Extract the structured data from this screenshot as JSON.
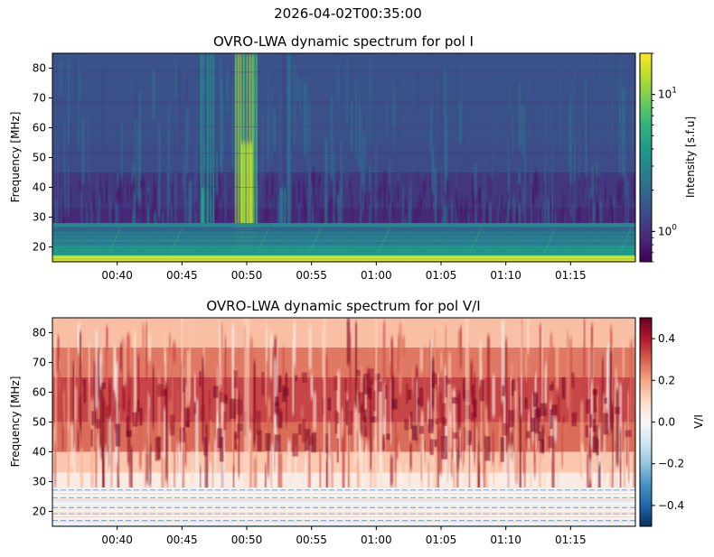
{
  "suptitle": "2026-04-02T00:35:00",
  "colors": {
    "viridis": [
      "#440154",
      "#482878",
      "#3e4989",
      "#31688e",
      "#26828e",
      "#1f9e89",
      "#35b779",
      "#6ece58",
      "#b5de2b",
      "#fde725"
    ],
    "rdbu_r": [
      "#053061",
      "#2166ac",
      "#4393c3",
      "#92c5de",
      "#d1e5f0",
      "#f7f7f7",
      "#fddbc7",
      "#f4a582",
      "#d6604d",
      "#b2182b",
      "#67001f"
    ]
  },
  "chart_data": [
    {
      "type": "heatmap",
      "title": "OVRO-LWA dynamic spectrum for pol I",
      "xlabel": "",
      "ylabel": "Frequency [MHz]",
      "xlim": [
        "00:35:00",
        "01:20:00"
      ],
      "ylim": [
        15,
        85
      ],
      "x_ticks": [
        "00:40",
        "00:45",
        "00:50",
        "00:55",
        "01:00",
        "01:05",
        "01:10",
        "01:15"
      ],
      "y_ticks": [
        20,
        30,
        40,
        50,
        60,
        70,
        80
      ],
      "colormap": "viridis",
      "color_scale": "log",
      "colorbar": {
        "label": "Intensity [s.f.u]",
        "range": [
          0.6,
          20
        ],
        "tick_labels": [
          "10^0",
          "10^1"
        ],
        "tick_values": [
          1,
          10
        ]
      },
      "features": [
        {
          "time": "00:47",
          "freq_range": [
            25,
            85
          ],
          "peak_intensity": 5
        },
        {
          "time": "00:50",
          "freq_range": [
            20,
            85
          ],
          "peak_intensity": 15
        },
        {
          "time": "00:53",
          "freq_range": [
            25,
            85
          ],
          "peak_intensity": 3
        }
      ],
      "rfi_band_mhz": [
        15,
        28
      ]
    },
    {
      "type": "heatmap",
      "title": "OVRO-LWA dynamic spectrum for pol V/I",
      "xlabel": "",
      "ylabel": "Frequency [MHz]",
      "xlim": [
        "00:35:00",
        "01:20:00"
      ],
      "ylim": [
        15,
        85
      ],
      "x_ticks": [
        "00:40",
        "00:45",
        "00:50",
        "00:55",
        "01:00",
        "01:05",
        "01:10",
        "01:15"
      ],
      "y_ticks": [
        20,
        30,
        40,
        50,
        60,
        70,
        80
      ],
      "colormap": "RdBu_r",
      "color_scale": "linear",
      "colorbar": {
        "label": "V/I",
        "range": [
          -0.5,
          0.5
        ],
        "tick_labels": [
          "−0.4",
          "−0.2",
          "0.0",
          "0.2",
          "0.4"
        ],
        "tick_values": [
          -0.4,
          -0.2,
          0.0,
          0.2,
          0.4
        ]
      },
      "strong_polarization_band_mhz": [
        40,
        70
      ]
    }
  ]
}
